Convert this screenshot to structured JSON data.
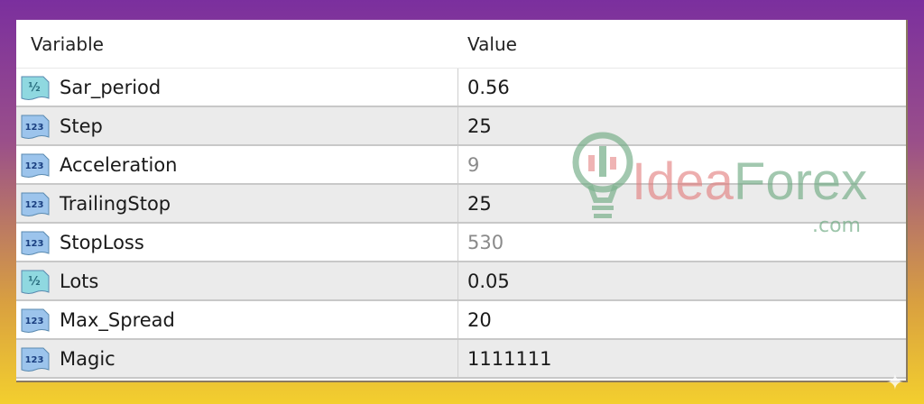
{
  "table": {
    "headers": {
      "variable": "Variable",
      "value": "Value"
    },
    "rows": [
      {
        "name": "Sar_period",
        "value": "0.56",
        "type_icon": "double-type-icon",
        "dim": false
      },
      {
        "name": "Step",
        "value": "25",
        "type_icon": "integer-type-icon",
        "dim": false
      },
      {
        "name": "Acceleration",
        "value": "9",
        "type_icon": "integer-type-icon",
        "dim": true
      },
      {
        "name": "TrailingStop",
        "value": "25",
        "type_icon": "integer-type-icon",
        "dim": false
      },
      {
        "name": "StopLoss",
        "value": "530",
        "type_icon": "integer-type-icon",
        "dim": true
      },
      {
        "name": "Lots",
        "value": "0.05",
        "type_icon": "double-type-icon",
        "dim": false
      },
      {
        "name": "Max_Spread",
        "value": "20",
        "type_icon": "integer-type-icon",
        "dim": false
      },
      {
        "name": "Magic",
        "value": "1111111",
        "type_icon": "integer-type-icon",
        "dim": false
      }
    ]
  },
  "watermark": {
    "part1": "Idea",
    "part2": "Forex",
    "suffix": ".com"
  },
  "icon_labels": {
    "double": "½",
    "integer": "123"
  }
}
